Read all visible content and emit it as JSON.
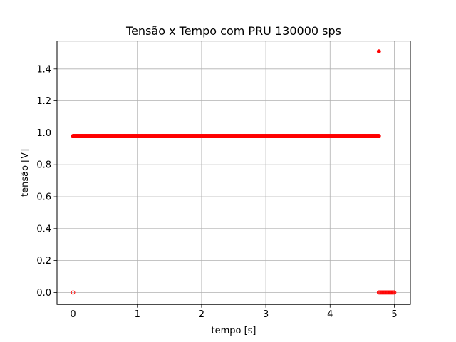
{
  "chart_data": {
    "type": "scatter",
    "title": "Tensão x Tempo com PRU 130000 sps",
    "xlabel": "tempo [s]",
    "ylabel": "tensão [V]",
    "xlim": [
      -0.25,
      5.25
    ],
    "ylim": [
      -0.075,
      1.575
    ],
    "x_ticks": [
      0,
      1,
      2,
      3,
      4,
      5
    ],
    "y_ticks": [
      0.0,
      0.2,
      0.4,
      0.6,
      0.8,
      1.0,
      1.2,
      1.4
    ],
    "x_tick_labels": [
      "0",
      "1",
      "2",
      "3",
      "4",
      "5"
    ],
    "y_tick_labels": [
      "0.0",
      "0.2",
      "0.4",
      "0.6",
      "0.8",
      "1.0",
      "1.2",
      "1.4"
    ],
    "grid": true,
    "color": "#ff0000",
    "series": [
      {
        "segments": [
          {
            "x_start": 0.0,
            "x_end": 0.0,
            "y": 0.0,
            "filled": false
          },
          {
            "x_start": 0.0,
            "x_end": 4.76,
            "y": 0.98,
            "filled": true
          },
          {
            "x_start": 4.76,
            "x_end": 4.76,
            "y": 1.51,
            "filled": true
          },
          {
            "x_start": 4.76,
            "x_end": 5.0,
            "y": 0.0,
            "filled": false
          }
        ]
      }
    ]
  }
}
